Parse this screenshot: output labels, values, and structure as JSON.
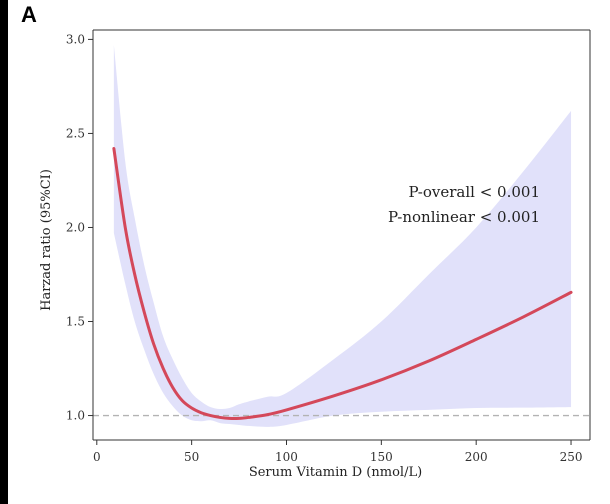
{
  "panel_label": "A",
  "chart_data": {
    "type": "line",
    "xlabel": "Serum Vitamin D (nmol/L)",
    "ylabel": "Harzad ratio (95%CI)",
    "xlim": [
      -2,
      260
    ],
    "ylim": [
      0.87,
      3.05
    ],
    "x_ticks": [
      0,
      50,
      100,
      150,
      200,
      250
    ],
    "y_ticks": [
      1.0,
      1.5,
      2.0,
      2.5,
      3.0
    ],
    "y_tick_labels": [
      "1.0",
      "1.5",
      "2.0",
      "2.5",
      "3.0"
    ],
    "reference_line": 1.0,
    "annotations": [
      "P-overall < 0.001",
      "P-nonlinear < 0.001"
    ],
    "colors": {
      "line": "#d4485a",
      "ci_band": "#e1e1fa",
      "reference": "#b3b3b3",
      "axis": "#333333"
    },
    "series": [
      {
        "x": [
          9,
          15,
          20,
          25,
          30,
          35,
          40,
          45,
          50,
          55,
          60,
          65,
          70,
          75,
          80,
          90,
          100,
          125,
          150,
          175,
          200,
          225,
          250
        ],
        "y": [
          2.42,
          2.0,
          1.75,
          1.55,
          1.38,
          1.25,
          1.15,
          1.08,
          1.04,
          1.015,
          1.0,
          0.99,
          0.985,
          0.985,
          0.99,
          1.005,
          1.03,
          1.105,
          1.19,
          1.29,
          1.405,
          1.525,
          1.655
        ],
        "lower": [
          1.97,
          1.7,
          1.5,
          1.35,
          1.22,
          1.12,
          1.05,
          1.0,
          0.975,
          0.97,
          0.975,
          0.96,
          0.955,
          0.95,
          0.945,
          0.94,
          0.95,
          1.0,
          1.02,
          1.03,
          1.04,
          1.042,
          1.045
        ],
        "upper": [
          2.97,
          2.35,
          2.05,
          1.8,
          1.6,
          1.42,
          1.3,
          1.2,
          1.12,
          1.075,
          1.045,
          1.035,
          1.04,
          1.06,
          1.075,
          1.1,
          1.12,
          1.3,
          1.5,
          1.75,
          2.0,
          2.3,
          2.62
        ]
      }
    ]
  }
}
